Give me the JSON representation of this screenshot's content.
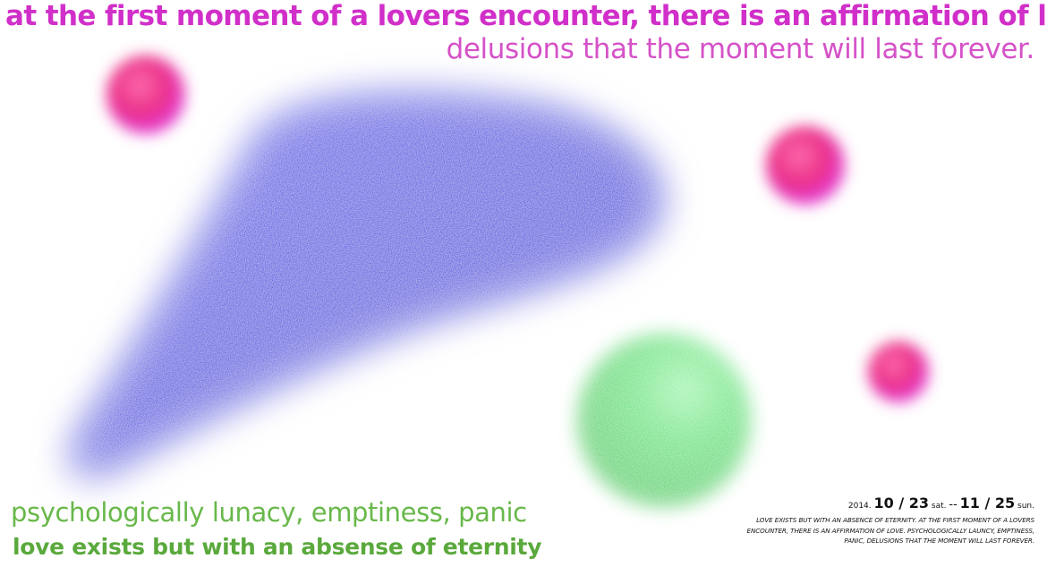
{
  "poster": {
    "headline": "at the first moment of a lovers encounter, there is an affirmation of love.",
    "subhead": "delusions that the moment will last forever.",
    "bottom_line_1": "psychologically lunacy, emptiness, panic",
    "bottom_line_2": "love exists but with an absense of eternity",
    "info": {
      "year": "2014.",
      "start_date": "10 / 23",
      "start_day": "sat.",
      "separator": "--",
      "end_date": "11 / 25",
      "end_day": "sun.",
      "description": "LOVE EXISTS BUT WITH AN ABSENCE OF ETERNITY. AT THE FIRST MOMENT OF A LOVERS ENCOUNTER, THERE IS AN AFFIRMATION OF LOVE. PSYCHOLOGICALLY LAUNCY, EMPTINESS, PANIC, DELUSIONS THAT THE MOMENT WILL LAST FOREVER."
    }
  },
  "colors": {
    "background": "#ffffff",
    "magenta_text": "#d12fc9",
    "pink_text": "#d552c8",
    "green_text_light": "#68b84a",
    "green_text_bold": "#5aa93c",
    "blue_shape": "#2323e0",
    "pink_sphere": "#ec3f8a",
    "green_sphere": "#5be37a",
    "info_text": "#111111"
  },
  "shapes": [
    "blue-triangle-blob",
    "pink-sphere",
    "pink-sphere",
    "pink-sphere",
    "green-sphere"
  ]
}
